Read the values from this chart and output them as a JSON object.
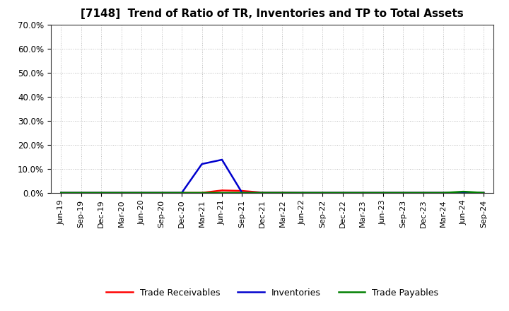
{
  "title": "[7148]  Trend of Ratio of TR, Inventories and TP to Total Assets",
  "x_labels": [
    "Jun-19",
    "Sep-19",
    "Dec-19",
    "Mar-20",
    "Jun-20",
    "Sep-20",
    "Dec-20",
    "Mar-21",
    "Jun-21",
    "Sep-21",
    "Dec-21",
    "Mar-22",
    "Jun-22",
    "Sep-22",
    "Dec-22",
    "Mar-23",
    "Jun-23",
    "Sep-23",
    "Dec-23",
    "Mar-24",
    "Jun-24",
    "Sep-24"
  ],
  "trade_receivables": [
    0.0,
    0.0,
    0.0,
    0.0,
    0.0,
    0.0,
    0.0,
    0.0,
    0.01,
    0.008,
    0.001,
    0.001,
    0.0,
    0.0,
    0.0,
    0.0,
    0.0,
    0.0,
    0.0,
    0.0,
    0.0,
    0.0
  ],
  "inventories": [
    0.0,
    0.0,
    0.0,
    0.0,
    0.0,
    0.0,
    0.0,
    0.12,
    0.138,
    0.0,
    0.0,
    0.0,
    0.0,
    0.0,
    0.0,
    0.0,
    0.0,
    0.0,
    0.0,
    0.0,
    0.0,
    0.0
  ],
  "trade_payables": [
    0.0,
    0.0,
    0.0,
    0.0,
    0.0,
    0.0,
    0.0,
    0.0,
    0.0,
    0.0,
    0.0,
    0.0,
    0.0,
    0.0,
    0.0,
    0.0,
    0.0,
    0.0,
    0.0,
    0.0,
    0.005,
    0.0
  ],
  "tr_color": "#ff0000",
  "inv_color": "#0000cd",
  "tp_color": "#008000",
  "ylim": [
    0.0,
    0.7
  ],
  "yticks": [
    0.0,
    0.1,
    0.2,
    0.3,
    0.4,
    0.5,
    0.6,
    0.7
  ],
  "ytick_labels": [
    "0.0%",
    "10.0%",
    "20.0%",
    "30.0%",
    "40.0%",
    "50.0%",
    "60.0%",
    "70.0%"
  ],
  "background_color": "#ffffff",
  "plot_bg_color": "#f8f8f8",
  "grid_color": "#bbbbbb",
  "legend_tr": "Trade Receivables",
  "legend_inv": "Inventories",
  "legend_tp": "Trade Payables",
  "line_width": 1.8,
  "title_fontsize": 11,
  "tick_fontsize": 8.5,
  "legend_fontsize": 9
}
